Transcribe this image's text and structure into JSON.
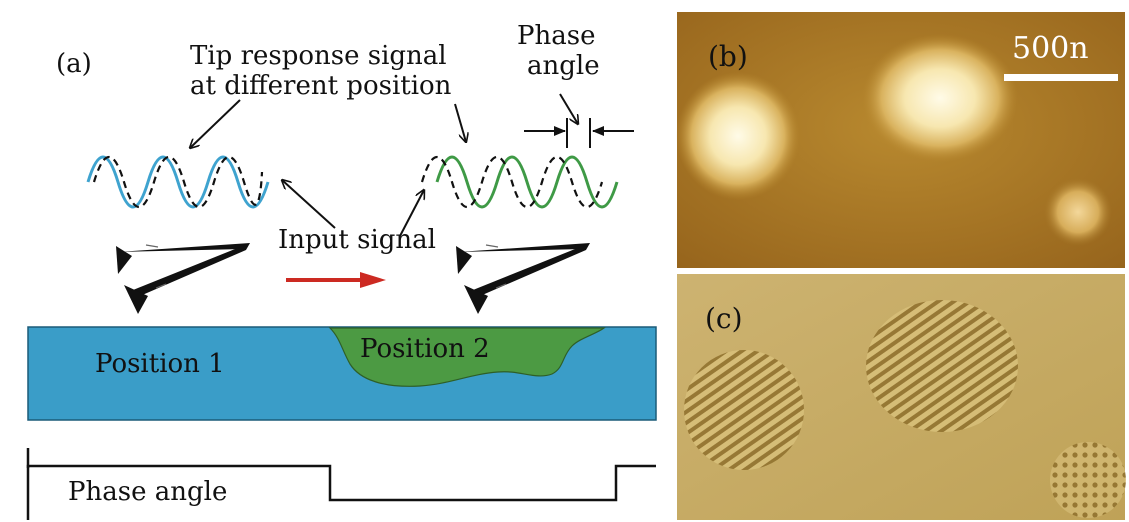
{
  "panel_a": {
    "label": "(a)",
    "tip_response_line1": "Tip response signal",
    "tip_response_line2": "at different position",
    "phase_angle_top_line1": "Phase",
    "phase_angle_top_line2": "angle",
    "input_signal": "Input signal",
    "position_1": "Position 1",
    "position_2": "Position 2",
    "phase_angle_bottom": "Phase angle"
  },
  "panel_b": {
    "label": "(b)",
    "scale_bar": "500n"
  },
  "panel_c": {
    "label": "(c)"
  },
  "colors": {
    "sample_blue": "#3a9dc8",
    "domain_green": "#4c9a43",
    "wave_blue": "#3fa3cf",
    "wave_green": "#3f9a46",
    "arrow_red": "#cc2a22",
    "afm_gold": "#a87a2a",
    "pfm_khaki": "#c6a85e"
  }
}
